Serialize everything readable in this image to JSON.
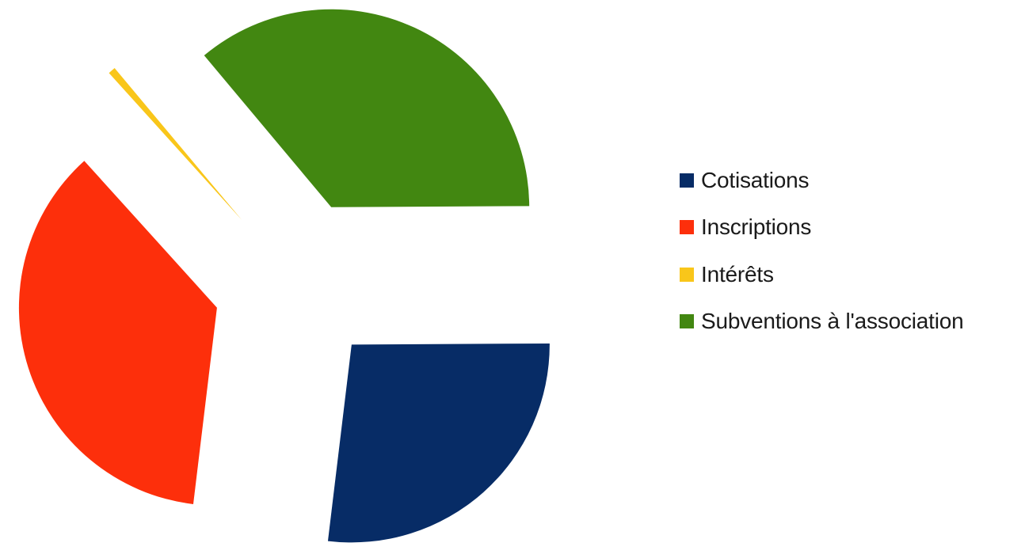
{
  "chart_data": {
    "type": "pie",
    "title": "",
    "exploded": true,
    "slices": [
      {
        "label": "Cotisations",
        "value": 27.0,
        "color": "#072c66"
      },
      {
        "label": "Subventions à l'association",
        "value": 36.0,
        "color": "#428711"
      },
      {
        "label": "Intérêts",
        "value": 0.6,
        "color": "#f9c61a"
      },
      {
        "label": "Inscriptions",
        "value": 36.4,
        "color": "#fd2f0b"
      }
    ],
    "legend": {
      "position": "right",
      "items": [
        {
          "label": "Cotisations",
          "color": "#072c66"
        },
        {
          "label": "Inscriptions",
          "color": "#fd2f0b"
        },
        {
          "label": "Intérêts",
          "color": "#f9c61a"
        },
        {
          "label": "Subventions à l'association",
          "color": "#428711"
        }
      ]
    }
  }
}
